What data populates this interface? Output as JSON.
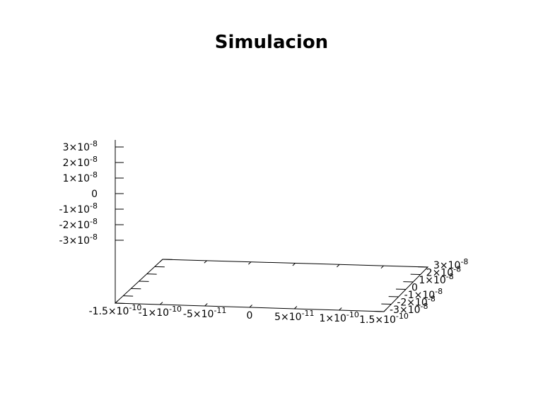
{
  "chart_data": {
    "type": "surface3d",
    "title": "Simulacion",
    "xlabel": "",
    "ylabel": "",
    "zlabel": "",
    "xlim": [
      -1.5e-10,
      1.5e-10
    ],
    "ylim": [
      -3e-08,
      3e-08
    ],
    "zlim": [
      -3e-08,
      3e-08
    ],
    "grid": false,
    "legend": "none",
    "x_ticks": [
      {
        "value": -1.5e-10,
        "mant": "-1.5",
        "exp": "-10"
      },
      {
        "value": -1e-10,
        "mant": "-1",
        "exp": "-10"
      },
      {
        "value": -5e-11,
        "mant": "-5",
        "exp": "-11"
      },
      {
        "value": 0,
        "mant": "0",
        "exp": ""
      },
      {
        "value": 5e-11,
        "mant": "5",
        "exp": "-11"
      },
      {
        "value": 1e-10,
        "mant": "1",
        "exp": "-10"
      },
      {
        "value": 1.5e-10,
        "mant": "1.5",
        "exp": "-10"
      }
    ],
    "y_ticks": [
      {
        "value": -3e-08,
        "mant": "-3",
        "exp": "-8"
      },
      {
        "value": -2e-08,
        "mant": "-2",
        "exp": "-8"
      },
      {
        "value": -1e-08,
        "mant": "-1",
        "exp": "-8"
      },
      {
        "value": 0,
        "mant": "0",
        "exp": ""
      },
      {
        "value": 1e-08,
        "mant": "1",
        "exp": "-8"
      },
      {
        "value": 2e-08,
        "mant": "2",
        "exp": "-8"
      },
      {
        "value": 3e-08,
        "mant": "3",
        "exp": "-8"
      }
    ],
    "z_ticks": [
      {
        "value": 3e-08,
        "mant": "3",
        "exp": "-8"
      },
      {
        "value": 2e-08,
        "mant": "2",
        "exp": "-8"
      },
      {
        "value": 1e-08,
        "mant": "1",
        "exp": "-8"
      },
      {
        "value": 0,
        "mant": "0",
        "exp": ""
      },
      {
        "value": -1e-08,
        "mant": "-1",
        "exp": "-8"
      },
      {
        "value": -2e-08,
        "mant": "-2",
        "exp": "-8"
      },
      {
        "value": -3e-08,
        "mant": "-3",
        "exp": "-8"
      }
    ],
    "series": []
  }
}
